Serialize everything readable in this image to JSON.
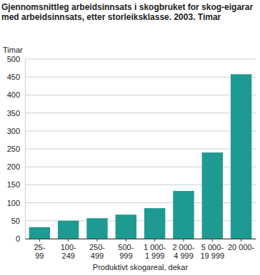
{
  "chart_data": {
    "type": "bar",
    "title": "Gjennomsnittleg arbeidsinnsats i skogbruket for skog-eigarar med arbeidsinnsats, etter storleiksklasse. 2003. Timar",
    "y_label": "Timar",
    "x_label": "Produktivt skogareal, dekar",
    "categories": [
      "25-\n99",
      "100-\n249",
      "250-\n499",
      "500-\n999",
      "1 000-\n1 999",
      "2 000-\n4 999",
      "5 000-\n19 999",
      "20 000-"
    ],
    "values": [
      32,
      50,
      57,
      67,
      85,
      133,
      240,
      458
    ],
    "color": "#1f9a93",
    "ylim": [
      0,
      500
    ],
    "yticks": [
      0,
      50,
      100,
      150,
      200,
      250,
      300,
      350,
      400,
      450,
      500
    ],
    "grid": true
  }
}
